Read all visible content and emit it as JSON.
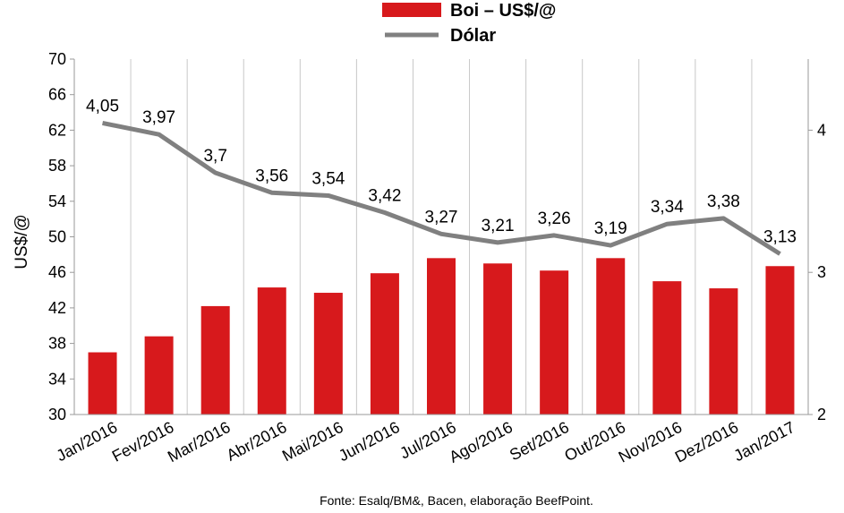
{
  "chart_data": {
    "type": "bar",
    "categories": [
      "Jan/2016",
      "Fev/2016",
      "Mar/2016",
      "Abr/2016",
      "Mai/2016",
      "Jun/2016",
      "Jul/2016",
      "Ago/2016",
      "Set/2016",
      "Out/2016",
      "Nov/2016",
      "Dez/2016",
      "Jan/2017"
    ],
    "series": [
      {
        "name": "Boi – US$/@",
        "type": "bar",
        "axis": "left",
        "color": "#d7191c",
        "values": [
          37.0,
          38.8,
          42.2,
          44.3,
          43.7,
          45.9,
          47.6,
          47.0,
          46.2,
          47.6,
          45.0,
          44.2,
          46.7
        ]
      },
      {
        "name": "Dólar",
        "type": "line",
        "axis": "right",
        "color": "#808080",
        "values": [
          4.05,
          3.97,
          3.7,
          3.56,
          3.54,
          3.42,
          3.27,
          3.21,
          3.26,
          3.19,
          3.34,
          3.38,
          3.13
        ],
        "labels": [
          "4,05",
          "3,97",
          "3,7",
          "3,56",
          "3,54",
          "3,42",
          "3,27",
          "3,21",
          "3,26",
          "3,19",
          "3,34",
          "3,38",
          "3,13"
        ]
      }
    ],
    "ylabel": "US$/@",
    "ylim": [
      30,
      70
    ],
    "yticks": [
      "30",
      "34",
      "38",
      "42",
      "46",
      "50",
      "54",
      "58",
      "62",
      "66",
      "70"
    ],
    "y2lim": [
      2,
      4.5
    ],
    "y2ticks": [
      "2",
      "3",
      "4"
    ],
    "legend_position": "top-center",
    "grid": "vertical",
    "source": "Fonte:  Esalq/BM&,  Bacen,  elaboração  BeefPoint."
  }
}
